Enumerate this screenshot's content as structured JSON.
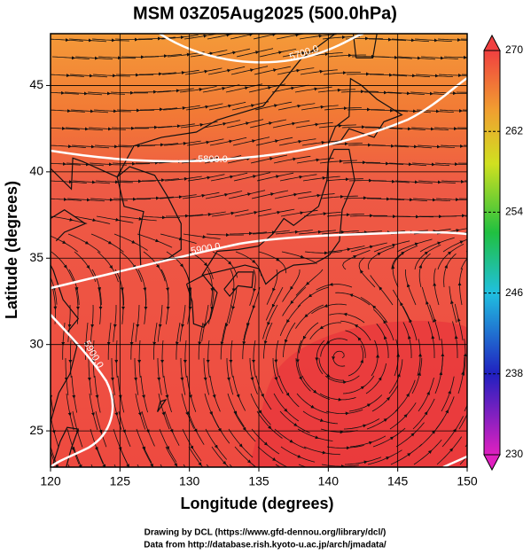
{
  "chart_data": {
    "type": "map",
    "title": "MSM 03Z05Aug2025 (500.0hPa)",
    "x_label": "Longitude (degrees)",
    "y_label": "Latitude  (degrees)",
    "xlim": [
      120,
      150
    ],
    "ylim": [
      22.9,
      48
    ],
    "xticks": [
      120,
      125,
      130,
      135,
      140,
      145,
      150
    ],
    "yticks": [
      25,
      30,
      35,
      40,
      45
    ],
    "grid": true,
    "colorbar": {
      "lim": [
        230,
        270
      ],
      "ticks": [
        230,
        238,
        246,
        254,
        262,
        270
      ]
    },
    "contour_labels": [
      "5700.0",
      "5800.0",
      "5900.0",
      "5900.0"
    ],
    "credits": [
      "Drawing by DCL (https://www.gfd-dennou.org/library/dcl/)",
      "Data from http://database.rish.kyoto-u.ac.jp/arch/jmadata/"
    ]
  }
}
